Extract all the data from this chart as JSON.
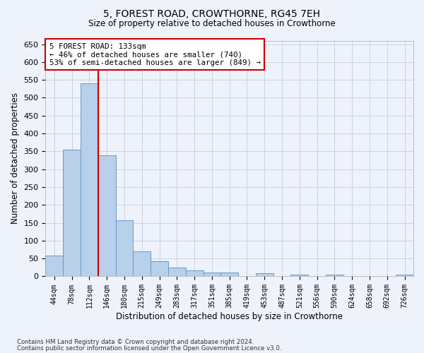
{
  "title": "5, FOREST ROAD, CROWTHORNE, RG45 7EH",
  "subtitle": "Size of property relative to detached houses in Crowthorne",
  "xlabel": "Distribution of detached houses by size in Crowthorne",
  "ylabel": "Number of detached properties",
  "bar_labels": [
    "44sqm",
    "78sqm",
    "112sqm",
    "146sqm",
    "180sqm",
    "215sqm",
    "249sqm",
    "283sqm",
    "317sqm",
    "351sqm",
    "385sqm",
    "419sqm",
    "453sqm",
    "487sqm",
    "521sqm",
    "556sqm",
    "590sqm",
    "624sqm",
    "658sqm",
    "692sqm",
    "726sqm"
  ],
  "bar_values": [
    58,
    355,
    540,
    338,
    157,
    70,
    43,
    25,
    17,
    11,
    10,
    0,
    9,
    0,
    5,
    0,
    5,
    0,
    0,
    0,
    5
  ],
  "bar_color": "#b8d0ea",
  "bar_edge_color": "#6699cc",
  "vline_color": "#cc0000",
  "annotation_text": "5 FOREST ROAD: 133sqm\n← 46% of detached houses are smaller (740)\n53% of semi-detached houses are larger (849) →",
  "annotation_box_color": "#ffffff",
  "annotation_box_edge": "#cc0000",
  "ylim": [
    0,
    660
  ],
  "yticks": [
    0,
    50,
    100,
    150,
    200,
    250,
    300,
    350,
    400,
    450,
    500,
    550,
    600,
    650
  ],
  "footnote1": "Contains HM Land Registry data © Crown copyright and database right 2024.",
  "footnote2": "Contains public sector information licensed under the Open Government Licence v3.0.",
  "bg_color": "#eef2fb",
  "plot_bg_color": "#eef2fb",
  "grid_color": "#c5cde0"
}
